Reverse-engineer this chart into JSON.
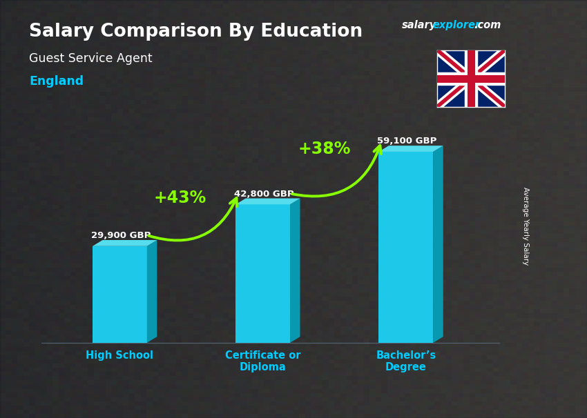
{
  "title_main": "Salary Comparison By Education",
  "subtitle1": "Guest Service Agent",
  "subtitle2": "England",
  "ylabel": "Average Yearly Salary",
  "categories": [
    "High School",
    "Certificate or\nDiploma",
    "Bachelor’s\nDegree"
  ],
  "values": [
    29900,
    42800,
    59100
  ],
  "labels": [
    "29,900 GBP",
    "42,800 GBP",
    "59,100 GBP"
  ],
  "pct_labels": [
    "+43%",
    "+38%"
  ],
  "bar_color_front": "#1ec8e8",
  "bar_color_top": "#55ddee",
  "bar_color_side": "#0899b0",
  "bg_overlay": "#1a2530",
  "title_color": "#ffffff",
  "subtitle1_color": "#ffffff",
  "subtitle2_color": "#00ccff",
  "label_color": "#ffffff",
  "pct_color": "#88ff00",
  "arrow_color": "#88ff00",
  "xticklabel_color": "#00ccff",
  "ylabel_color": "#ffffff",
  "ylim": [
    0,
    75000
  ],
  "bar_width": 0.38,
  "x_positions": [
    0,
    1,
    2
  ]
}
